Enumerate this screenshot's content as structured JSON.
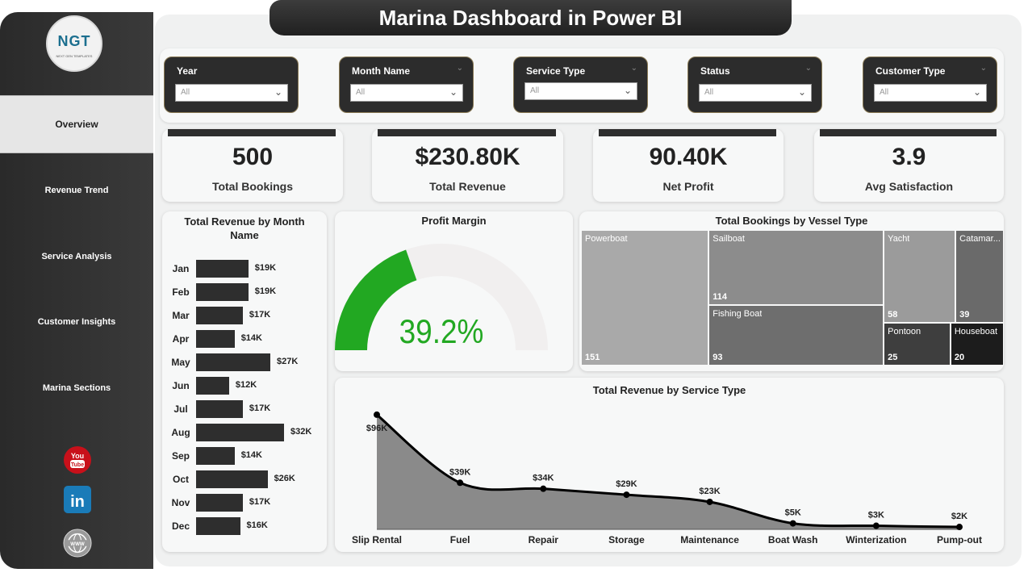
{
  "title": "Marina Dashboard in Power BI",
  "logo": {
    "text": "NGT",
    "sub": "NEXT GEN TEMPLATES"
  },
  "nav": [
    {
      "label": "Overview",
      "active": true
    },
    {
      "label": "Revenue Trend"
    },
    {
      "label": "Service Analysis"
    },
    {
      "label": "Customer Insights"
    },
    {
      "label": "Marina Sections"
    }
  ],
  "social": {
    "youtube": "youtube-icon",
    "linkedin": "linkedin-icon",
    "web": "globe-icon"
  },
  "filters": [
    {
      "label": "Year",
      "value": "All"
    },
    {
      "label": "Month Name",
      "value": "All"
    },
    {
      "label": "Service Type",
      "value": "All"
    },
    {
      "label": "Status",
      "value": "All"
    },
    {
      "label": "Customer Type",
      "value": "All"
    }
  ],
  "kpis": [
    {
      "value": "500",
      "label": "Total Bookings"
    },
    {
      "value": "$230.80K",
      "label": "Total Revenue"
    },
    {
      "value": "90.40K",
      "label": "Net Profit"
    },
    {
      "value": "3.9",
      "label": "Avg Satisfaction"
    }
  ],
  "chart_data": [
    {
      "type": "bar",
      "title": "Total Revenue by Month Name",
      "orientation": "horizontal",
      "categories": [
        "Jan",
        "Feb",
        "Mar",
        "Apr",
        "May",
        "Jun",
        "Jul",
        "Aug",
        "Sep",
        "Oct",
        "Nov",
        "Dec"
      ],
      "values": [
        19,
        19,
        17,
        14,
        27,
        12,
        17,
        32,
        14,
        26,
        17,
        16
      ],
      "data_labels": [
        "$19K",
        "$19K",
        "$17K",
        "$14K",
        "$27K",
        "$12K",
        "$17K",
        "$32K",
        "$14K",
        "$26K",
        "$17K",
        "$16K"
      ],
      "color": "#2e2e2e"
    },
    {
      "type": "gauge",
      "title": "Profit Margin",
      "value": 39.2,
      "label": "39.2%",
      "max": 100,
      "color": "#22a822",
      "track_color": "#f1efef"
    },
    {
      "type": "treemap",
      "title": "Total Bookings by Vessel Type",
      "items": [
        {
          "name": "Powerboat",
          "value": 151,
          "label": "151",
          "color": "#a9a9a9"
        },
        {
          "name": "Sailboat",
          "value": 114,
          "label": "114",
          "color": "#8c8c8c"
        },
        {
          "name": "Fishing Boat",
          "value": 93,
          "label": "93",
          "color": "#6e6e6e"
        },
        {
          "name": "Yacht",
          "value": 58,
          "label": "58",
          "color": "#9b9b9b"
        },
        {
          "name": "Catamar...",
          "value": 39,
          "label": "39",
          "color": "#6a6a6a"
        },
        {
          "name": "Pontoon",
          "value": 25,
          "label": "25",
          "color": "#3e3e3e"
        },
        {
          "name": "Houseboat",
          "value": 20,
          "label": "20",
          "color": "#1c1c1c"
        }
      ]
    },
    {
      "type": "area",
      "title": "Total Revenue by Service Type",
      "categories": [
        "Slip Rental",
        "Fuel",
        "Repair",
        "Storage",
        "Maintenance",
        "Boat Wash",
        "Winterization",
        "Pump-out"
      ],
      "values": [
        96,
        39,
        34,
        29,
        23,
        5,
        3,
        2
      ],
      "data_labels": [
        "$96K",
        "$39K",
        "$34K",
        "$29K",
        "$23K",
        "$5K",
        "$3K",
        "$2K"
      ],
      "ylim": [
        0,
        100
      ],
      "color": "#8a8a8a"
    }
  ]
}
